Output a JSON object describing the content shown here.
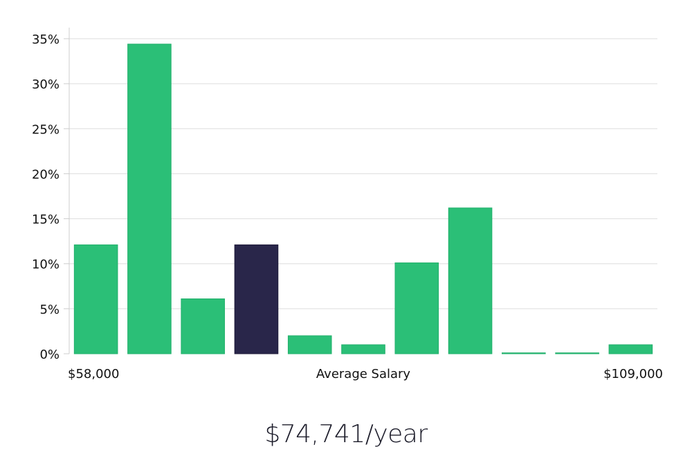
{
  "chart_data": {
    "type": "bar",
    "title": "",
    "xlabel": "Average Salary",
    "ylabel": "",
    "x_min_label": "$58,000",
    "x_max_label": "$109,000",
    "ylim": [
      0,
      35
    ],
    "yticks": [
      0,
      5,
      10,
      15,
      20,
      25,
      30,
      35
    ],
    "ytick_labels": [
      "0%",
      "5%",
      "10%",
      "15%",
      "20%",
      "25%",
      "30%",
      "35%"
    ],
    "grid": true,
    "values": [
      12.1,
      34.4,
      6.1,
      12.1,
      2.0,
      1.0,
      10.1,
      16.2,
      0.1,
      0.1,
      1.0
    ],
    "highlight_index": 3,
    "colors": {
      "bar": "#2bbf77",
      "highlight": "#29264a",
      "grid": "#dddddd",
      "axis": "#cccccc"
    }
  },
  "summary": {
    "salary_text": "$74,741/year"
  }
}
